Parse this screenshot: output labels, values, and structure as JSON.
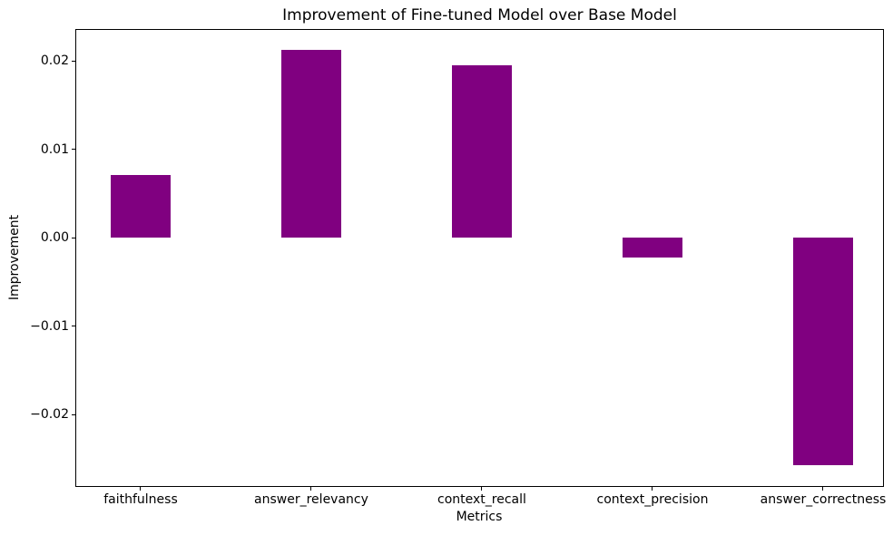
{
  "chart_data": {
    "type": "bar",
    "title": "Improvement of Fine-tuned Model over Base Model",
    "xlabel": "Metrics",
    "ylabel": "Improvement",
    "categories": [
      "faithfulness",
      "answer_relevancy",
      "context_recall",
      "context_precision",
      "answer_correctness"
    ],
    "values": [
      0.0071,
      0.0212,
      0.0195,
      -0.0022,
      -0.0257
    ],
    "bar_color": "#800080",
    "ylim": [
      -0.0282,
      0.0236
    ],
    "yticks": [
      {
        "value": 0.02,
        "label": "0.02"
      },
      {
        "value": 0.01,
        "label": "0.01"
      },
      {
        "value": 0.0,
        "label": "0.00"
      },
      {
        "value": -0.01,
        "label": "−0.01"
      },
      {
        "value": -0.02,
        "label": "−0.02"
      }
    ],
    "grid": false,
    "legend_position": "none",
    "text_color": "#000000",
    "spine_color": "#000000"
  }
}
